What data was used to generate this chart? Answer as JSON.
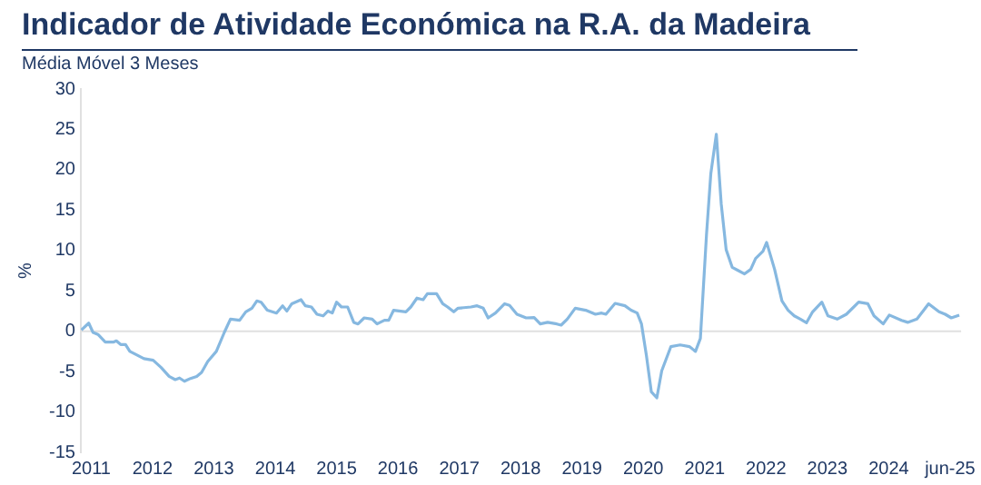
{
  "chart_data": {
    "type": "line",
    "title": "Indicador de Atividade Económica na R.A. da Madeira",
    "subtitle": "Média Móvel 3 Meses",
    "ylabel": "%",
    "x": [
      2011.26,
      2011.38,
      2011.45,
      2011.53,
      2011.65,
      2011.78,
      2011.83,
      2011.9,
      2011.98,
      2012.05,
      2012.18,
      2012.28,
      2012.43,
      2012.56,
      2012.69,
      2012.79,
      2012.86,
      2012.94,
      2013.04,
      2013.14,
      2013.22,
      2013.32,
      2013.46,
      2013.59,
      2013.69,
      2013.84,
      2013.94,
      2014.04,
      2014.12,
      2014.19,
      2014.29,
      2014.44,
      2014.54,
      2014.61,
      2014.69,
      2014.84,
      2014.91,
      2015.01,
      2015.1,
      2015.2,
      2015.28,
      2015.35,
      2015.42,
      2015.5,
      2015.6,
      2015.7,
      2015.77,
      2015.87,
      2016.0,
      2016.08,
      2016.2,
      2016.27,
      2016.35,
      2016.55,
      2016.63,
      2016.73,
      2016.83,
      2016.9,
      2017.05,
      2017.15,
      2017.23,
      2017.33,
      2017.4,
      2017.61,
      2017.71,
      2017.81,
      2017.89,
      2018.01,
      2018.16,
      2018.24,
      2018.36,
      2018.51,
      2018.64,
      2018.74,
      2018.86,
      2019.01,
      2019.08,
      2019.18,
      2019.31,
      2019.48,
      2019.64,
      2019.74,
      2019.81,
      2019.96,
      2020.12,
      2020.22,
      2020.32,
      2020.39,
      2020.47,
      2020.55,
      2020.64,
      2020.72,
      2020.87,
      2021.02,
      2021.17,
      2021.27,
      2021.35,
      2021.45,
      2021.52,
      2021.61,
      2021.69,
      2021.77,
      2021.87,
      2021.97,
      2022.07,
      2022.17,
      2022.25,
      2022.37,
      2022.43,
      2022.56,
      2022.68,
      2022.78,
      2022.88,
      2022.98,
      2023.08,
      2023.18,
      2023.33,
      2023.43,
      2023.58,
      2023.73,
      2023.93,
      2024.08,
      2024.18,
      2024.33,
      2024.43,
      2024.63,
      2024.73,
      2024.88,
      2025.07,
      2025.24,
      2025.34,
      2025.44,
      2025.57
    ],
    "series": [
      {
        "color": "#86b8e0",
        "values": [
          0.15,
          1.0,
          -0.15,
          -0.4,
          -1.35,
          -1.35,
          -1.2,
          -1.65,
          -1.65,
          -2.5,
          -3.0,
          -3.4,
          -3.6,
          -4.5,
          -5.6,
          -6.0,
          -5.8,
          -6.2,
          -5.85,
          -5.6,
          -5.1,
          -3.75,
          -2.5,
          -0.15,
          1.5,
          1.35,
          2.4,
          2.85,
          3.75,
          3.6,
          2.6,
          2.25,
          3.15,
          2.5,
          3.4,
          3.9,
          3.15,
          3.0,
          2.1,
          1.9,
          2.5,
          2.25,
          3.6,
          3.0,
          3.0,
          1.1,
          0.9,
          1.65,
          1.5,
          0.9,
          1.35,
          1.35,
          2.6,
          2.4,
          3.0,
          4.1,
          3.9,
          4.65,
          4.65,
          3.4,
          3.0,
          2.4,
          2.85,
          3.0,
          3.15,
          2.85,
          1.65,
          2.25,
          3.4,
          3.2,
          2.1,
          1.65,
          1.7,
          0.9,
          1.1,
          0.9,
          0.75,
          1.5,
          2.85,
          2.6,
          2.1,
          2.25,
          2.1,
          3.45,
          3.15,
          2.6,
          2.25,
          0.9,
          -3.0,
          -7.5,
          -8.25,
          -4.9,
          -1.9,
          -1.7,
          -1.9,
          -2.5,
          -0.9,
          12.0,
          19.5,
          24.4,
          15.75,
          10.1,
          7.9,
          7.5,
          7.1,
          7.65,
          9.0,
          9.9,
          11.0,
          7.65,
          3.75,
          2.6,
          1.9,
          1.5,
          1.05,
          2.4,
          3.6,
          1.9,
          1.5,
          2.1,
          3.6,
          3.4,
          1.9,
          0.9,
          2.0,
          1.35,
          1.1,
          1.5,
          3.4,
          2.4,
          2.1,
          1.65,
          2.0
        ]
      }
    ],
    "xlim": [
      2011.25,
      2025.6
    ],
    "xticks": [
      {
        "value": 2011.42,
        "label": "2011"
      },
      {
        "value": 2012.42,
        "label": "2012"
      },
      {
        "value": 2013.42,
        "label": "2013"
      },
      {
        "value": 2014.42,
        "label": "2014"
      },
      {
        "value": 2015.42,
        "label": "2015"
      },
      {
        "value": 2016.42,
        "label": "2016"
      },
      {
        "value": 2017.42,
        "label": "2017"
      },
      {
        "value": 2018.42,
        "label": "2018"
      },
      {
        "value": 2019.42,
        "label": "2019"
      },
      {
        "value": 2020.42,
        "label": "2020"
      },
      {
        "value": 2021.42,
        "label": "2021"
      },
      {
        "value": 2022.42,
        "label": "2022"
      },
      {
        "value": 2023.42,
        "label": "2023"
      },
      {
        "value": 2024.42,
        "label": "2024"
      },
      {
        "value": 2025.42,
        "label": "jun-25"
      }
    ],
    "ylim": [
      -15,
      30
    ],
    "yticks": [
      -15,
      -10,
      -5,
      0,
      5,
      10,
      15,
      20,
      25,
      30
    ],
    "ref_lines": [
      {
        "axis": "y",
        "value": 0,
        "color": "#e0e0e0"
      }
    ],
    "grid": false,
    "legend": false,
    "marker": "none",
    "line_style": "solid"
  }
}
